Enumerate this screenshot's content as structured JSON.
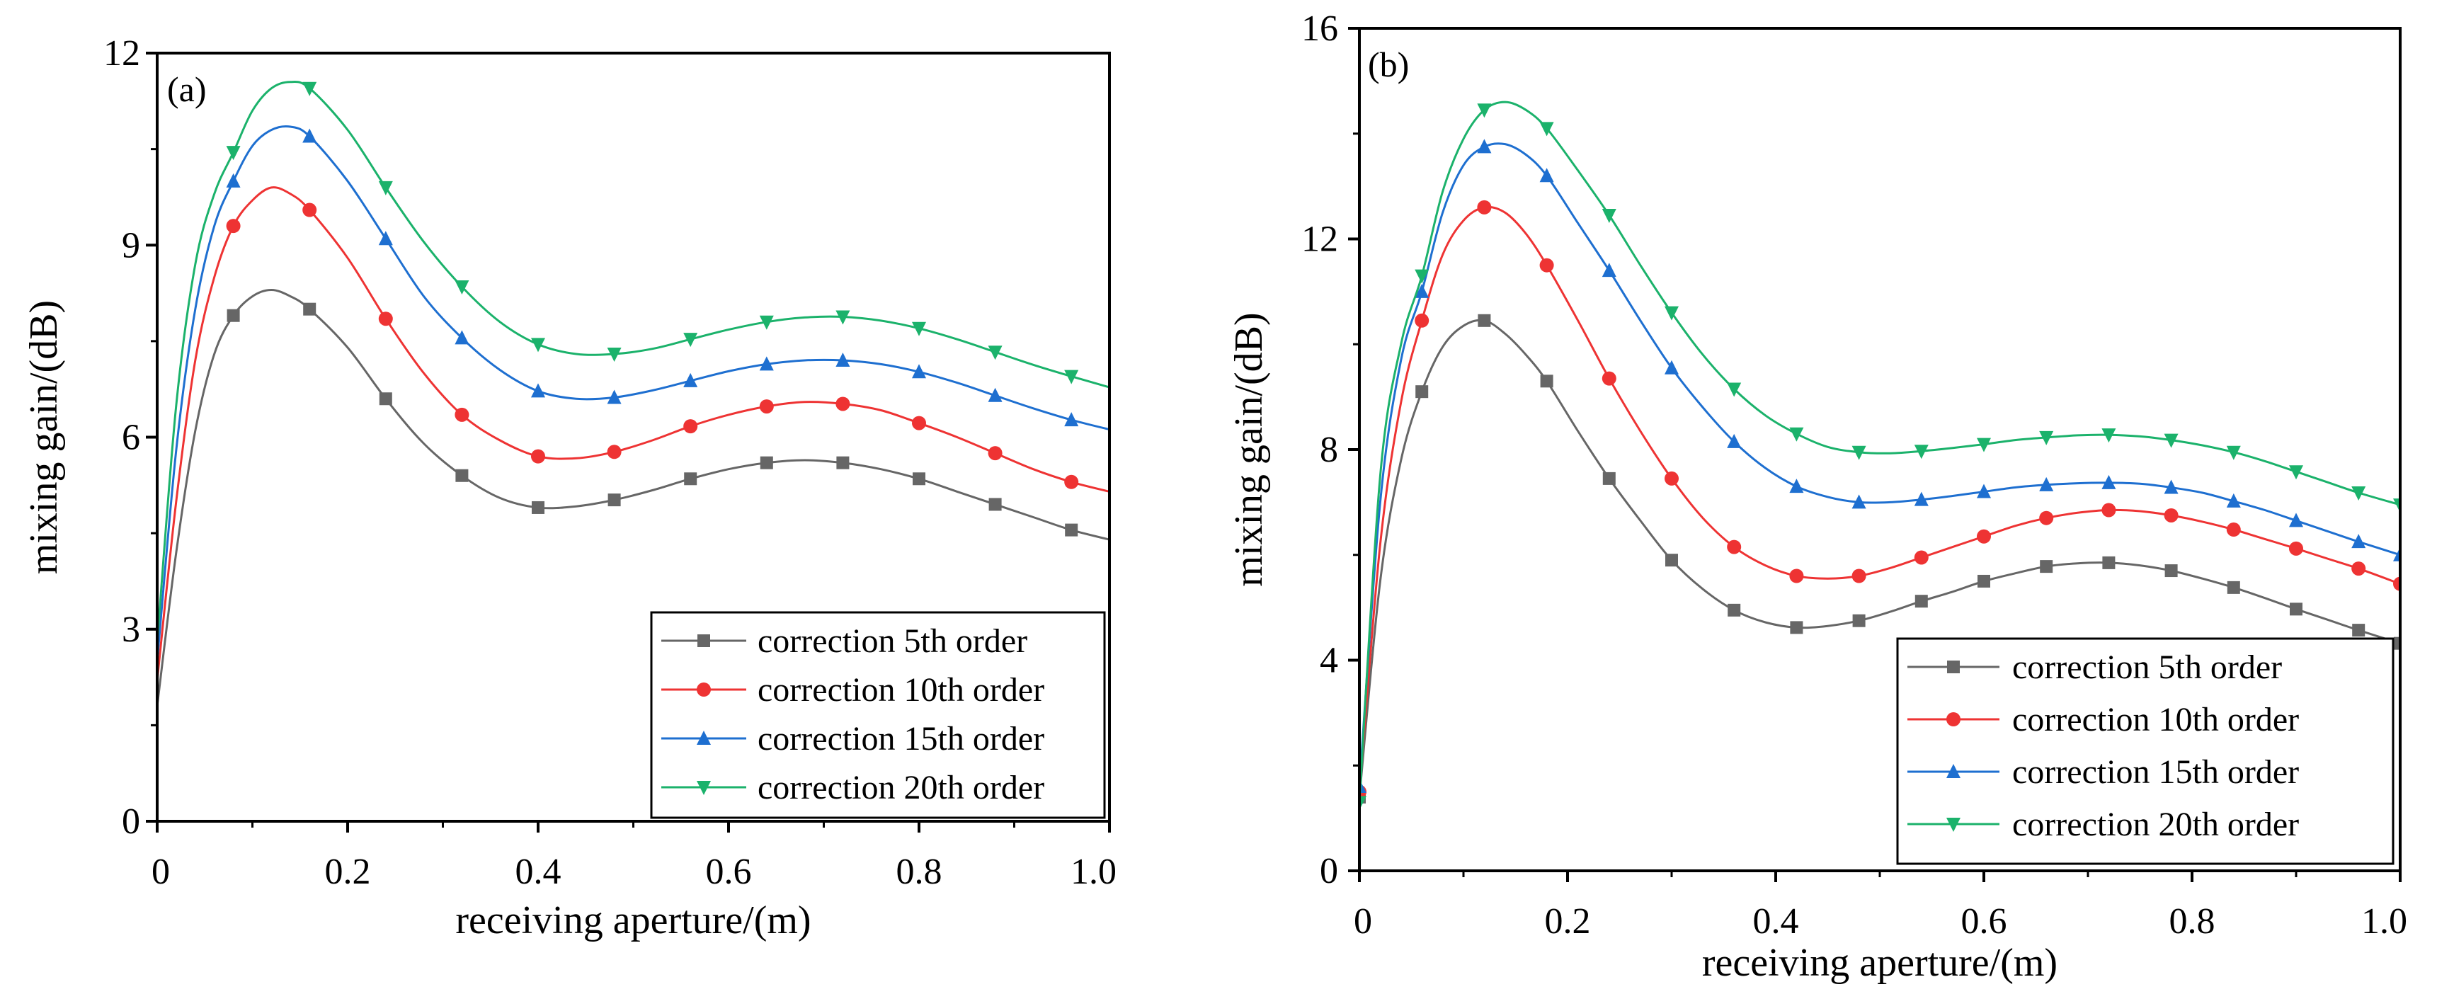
{
  "chart_data": [
    {
      "type": "line",
      "panel_label": "(a)",
      "xlabel": "receiving aperture/(m)",
      "ylabel": "mixing gain/(dB)",
      "xlim": [
        0,
        1.0
      ],
      "ylim": [
        0,
        12
      ],
      "x_ticks": [
        0,
        0.2,
        0.4,
        0.6,
        0.8,
        1.0
      ],
      "x_tick_labels": [
        "0",
        "0.2",
        "0.4",
        "0.6",
        "0.8",
        "1.0"
      ],
      "y_ticks": [
        0,
        3,
        6,
        9,
        12
      ],
      "y_tick_labels": [
        "0",
        "3",
        "6",
        "9",
        "12"
      ],
      "legend_position": "bottom-right",
      "x": [
        0,
        0.02,
        0.04,
        0.06,
        0.08,
        0.1,
        0.12,
        0.14,
        0.16,
        0.2,
        0.24,
        0.28,
        0.32,
        0.36,
        0.4,
        0.44,
        0.48,
        0.52,
        0.56,
        0.6,
        0.64,
        0.68,
        0.72,
        0.76,
        0.8,
        0.84,
        0.88,
        0.92,
        0.96,
        1.0
      ],
      "marker_x": [
        0.08,
        0.16,
        0.24,
        0.32,
        0.4,
        0.48,
        0.56,
        0.64,
        0.72,
        0.8,
        0.88,
        0.96
      ],
      "series": [
        {
          "name": "correction 5th order",
          "color": "#666666",
          "marker": "square",
          "values": [
            1.8,
            4.2,
            6.1,
            7.3,
            7.9,
            8.2,
            8.3,
            8.2,
            8.0,
            7.4,
            6.6,
            5.9,
            5.4,
            5.05,
            4.9,
            4.92,
            5.02,
            5.17,
            5.35,
            5.5,
            5.6,
            5.64,
            5.6,
            5.5,
            5.35,
            5.15,
            4.95,
            4.75,
            4.55,
            4.4
          ]
        },
        {
          "name": "correction 10th order",
          "color": "#ee3333",
          "marker": "circle",
          "values": [
            2.2,
            5.0,
            7.2,
            8.5,
            9.3,
            9.7,
            9.9,
            9.8,
            9.55,
            8.8,
            7.85,
            7.0,
            6.35,
            5.95,
            5.7,
            5.67,
            5.77,
            5.95,
            6.17,
            6.35,
            6.48,
            6.55,
            6.52,
            6.42,
            6.22,
            6.0,
            5.75,
            5.5,
            5.3,
            5.15
          ]
        },
        {
          "name": "correction 15th order",
          "color": "#1e6fd0",
          "marker": "triangle-up",
          "values": [
            2.5,
            5.8,
            8.0,
            9.3,
            10.0,
            10.55,
            10.8,
            10.85,
            10.7,
            10.0,
            9.1,
            8.2,
            7.55,
            7.05,
            6.72,
            6.6,
            6.62,
            6.73,
            6.88,
            7.03,
            7.14,
            7.2,
            7.2,
            7.14,
            7.02,
            6.85,
            6.65,
            6.45,
            6.27,
            6.12
          ]
        },
        {
          "name": "correction 20th order",
          "color": "#1bb26b",
          "marker": "triangle-down",
          "values": [
            2.8,
            6.5,
            8.7,
            9.8,
            10.45,
            11.1,
            11.45,
            11.55,
            11.45,
            10.8,
            9.9,
            9.05,
            8.35,
            7.8,
            7.45,
            7.3,
            7.3,
            7.38,
            7.53,
            7.68,
            7.8,
            7.87,
            7.88,
            7.82,
            7.7,
            7.53,
            7.33,
            7.13,
            6.95,
            6.78
          ]
        }
      ]
    },
    {
      "type": "line",
      "panel_label": "(b)",
      "xlabel": "receiving aperture/(m)",
      "ylabel": "mixing gain/(dB)",
      "xlim": [
        0,
        1.0
      ],
      "ylim": [
        0,
        16
      ],
      "x_ticks": [
        0,
        0.2,
        0.4,
        0.6,
        0.8,
        1.0
      ],
      "x_tick_labels": [
        "0",
        "0.2",
        "0.4",
        "0.6",
        "0.8",
        "1.0"
      ],
      "y_ticks": [
        0,
        4,
        8,
        12,
        16
      ],
      "y_tick_labels": [
        "0",
        "4",
        "8",
        "12",
        "16"
      ],
      "legend_position": "bottom-right",
      "x": [
        0,
        0.02,
        0.04,
        0.06,
        0.08,
        0.1,
        0.12,
        0.14,
        0.16,
        0.18,
        0.21,
        0.24,
        0.27,
        0.3,
        0.33,
        0.36,
        0.39,
        0.42,
        0.45,
        0.48,
        0.51,
        0.54,
        0.57,
        0.6,
        0.63,
        0.66,
        0.69,
        0.72,
        0.75,
        0.78,
        0.81,
        0.84,
        0.87,
        0.9,
        0.93,
        0.96,
        1.0
      ],
      "marker_x": [
        0,
        0.06,
        0.12,
        0.18,
        0.24,
        0.3,
        0.36,
        0.42,
        0.48,
        0.54,
        0.6,
        0.66,
        0.72,
        0.78,
        0.84,
        0.9,
        0.96,
        1.0
      ],
      "series": [
        {
          "name": "correction 5th order",
          "color": "#666666",
          "marker": "square",
          "values": [
            1.4,
            5.5,
            7.8,
            9.1,
            9.95,
            10.35,
            10.45,
            10.2,
            9.8,
            9.3,
            8.35,
            7.45,
            6.65,
            5.9,
            5.35,
            4.95,
            4.72,
            4.62,
            4.65,
            4.75,
            4.92,
            5.12,
            5.3,
            5.5,
            5.65,
            5.78,
            5.84,
            5.85,
            5.8,
            5.7,
            5.55,
            5.38,
            5.18,
            4.97,
            4.77,
            4.57,
            4.32
          ]
        },
        {
          "name": "correction 10th order",
          "color": "#ee3333",
          "marker": "circle",
          "values": [
            1.5,
            6.2,
            8.9,
            10.45,
            11.7,
            12.35,
            12.6,
            12.5,
            12.1,
            11.5,
            10.45,
            9.35,
            8.35,
            7.45,
            6.7,
            6.15,
            5.8,
            5.6,
            5.55,
            5.6,
            5.75,
            5.95,
            6.15,
            6.35,
            6.55,
            6.7,
            6.8,
            6.85,
            6.83,
            6.75,
            6.63,
            6.48,
            6.3,
            6.12,
            5.93,
            5.74,
            5.45
          ]
        },
        {
          "name": "correction 15th order",
          "color": "#1e6fd0",
          "marker": "triangle-up",
          "values": [
            1.6,
            7.0,
            9.7,
            11.0,
            12.5,
            13.4,
            13.75,
            13.8,
            13.6,
            13.2,
            12.3,
            11.4,
            10.45,
            9.55,
            8.8,
            8.15,
            7.65,
            7.3,
            7.1,
            7.0,
            7.0,
            7.05,
            7.12,
            7.2,
            7.28,
            7.33,
            7.36,
            7.37,
            7.35,
            7.28,
            7.18,
            7.02,
            6.85,
            6.65,
            6.45,
            6.25,
            6.0
          ]
        },
        {
          "name": "correction 20th order",
          "color": "#1bb26b",
          "marker": "triangle-down",
          "values": [
            1.3,
            7.5,
            10.0,
            11.3,
            12.9,
            13.9,
            14.45,
            14.6,
            14.45,
            14.1,
            13.3,
            12.45,
            11.5,
            10.6,
            9.8,
            9.15,
            8.65,
            8.3,
            8.05,
            7.95,
            7.93,
            7.97,
            8.03,
            8.1,
            8.18,
            8.23,
            8.27,
            8.28,
            8.25,
            8.18,
            8.08,
            7.95,
            7.78,
            7.58,
            7.38,
            7.18,
            6.95
          ]
        }
      ]
    }
  ]
}
